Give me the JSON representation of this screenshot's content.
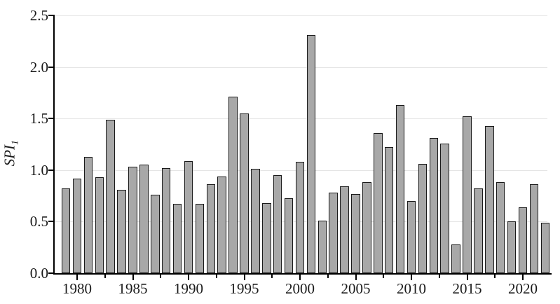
{
  "figure": {
    "background": "#ffffff"
  },
  "chart_data": {
    "type": "bar",
    "title": "",
    "xlabel": "",
    "ylabel_main": "SPI",
    "ylabel_sub": "1",
    "years": [
      1979,
      1980,
      1981,
      1982,
      1983,
      1984,
      1985,
      1986,
      1987,
      1988,
      1989,
      1990,
      1991,
      1992,
      1993,
      1994,
      1995,
      1996,
      1997,
      1998,
      1999,
      2000,
      2001,
      2002,
      2003,
      2004,
      2005,
      2006,
      2007,
      2008,
      2009,
      2010,
      2011,
      2012,
      2013,
      2014,
      2015,
      2016,
      2017,
      2018,
      2019,
      2020,
      2021,
      2022
    ],
    "values": [
      0.82,
      0.92,
      1.13,
      0.93,
      1.49,
      0.81,
      1.03,
      1.05,
      0.76,
      1.02,
      0.67,
      1.09,
      0.67,
      0.86,
      0.94,
      1.71,
      1.55,
      1.01,
      0.68,
      0.95,
      0.73,
      1.08,
      2.31,
      0.51,
      0.78,
      0.84,
      0.77,
      0.88,
      1.36,
      1.22,
      1.63,
      0.7,
      1.06,
      1.31,
      1.26,
      0.28,
      1.52,
      0.82,
      1.43,
      0.88,
      0.5,
      0.64,
      0.86,
      0.49
    ],
    "ylim": [
      0,
      2.5
    ],
    "y_ticks": [
      0.0,
      0.5,
      1.0,
      1.5,
      2.0,
      2.5
    ],
    "y_tick_labels": [
      "0.0",
      "0.5",
      "1.0",
      "1.5",
      "2.0",
      "2.5"
    ],
    "x_tick_years": [
      1980,
      1985,
      1990,
      1995,
      2000,
      2005,
      2010,
      2015,
      2020
    ],
    "x_tick_labels": [
      "1980",
      "1985",
      "1990",
      "1995",
      "2000",
      "2005",
      "2010",
      "2015",
      "2020"
    ],
    "x_minor_tick_years": [
      1982.5,
      1987.5,
      1992.5,
      1997.5,
      2002.5,
      2007.5,
      2012.5,
      2017.5
    ],
    "grid": "horizontal-only",
    "legend": "none",
    "bar_fill": "#a8a8a8",
    "bar_border": "#1a1a1a",
    "gridline_color": "#e5e5e5",
    "axis_color": "#000000"
  }
}
